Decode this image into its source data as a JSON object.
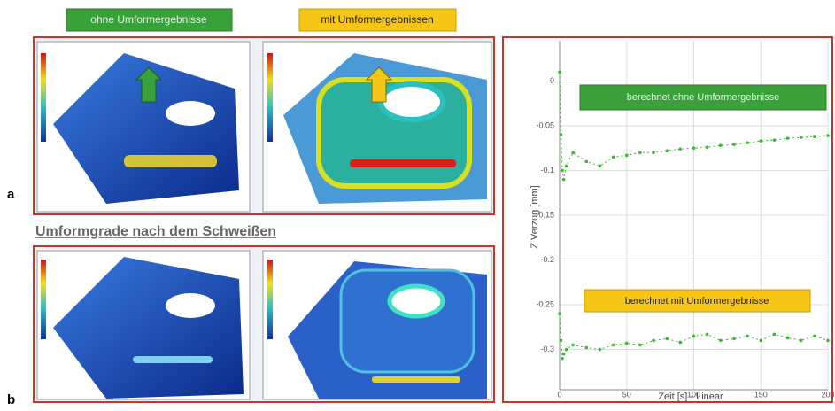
{
  "chart_data": {
    "type": "line",
    "labels": {
      "left": "ohne Umformergebnisse",
      "right": "mit Umformergebnissen",
      "panel_a": "a",
      "panel_b": "b",
      "heading": "Umformgrade nach dem Schweißen"
    },
    "y_label": "Z Verzug [mm]",
    "x_label": "Zeit [s] - Linear",
    "annotations": [
      "berechnet ohne Umformergebnisse",
      "berechnet mit Umformergebnisse"
    ],
    "x": [
      0,
      1,
      2,
      3,
      5,
      10,
      20,
      30,
      40,
      50,
      60,
      70,
      80,
      90,
      100,
      110,
      120,
      130,
      140,
      150,
      160,
      170,
      180,
      190,
      200
    ],
    "series": [
      {
        "color": "#3cb832",
        "values": [
          0.01,
          -0.06,
          -0.1,
          -0.11,
          -0.095,
          -0.08,
          -0.09,
          -0.095,
          -0.085,
          -0.083,
          -0.08,
          -0.08,
          -0.078,
          -0.076,
          -0.075,
          -0.074,
          -0.072,
          -0.071,
          -0.069,
          -0.067,
          -0.066,
          -0.064,
          -0.063,
          -0.062,
          -0.061
        ]
      },
      {
        "color": "#3cb832",
        "values": [
          -0.26,
          -0.29,
          -0.31,
          -0.305,
          -0.3,
          -0.295,
          -0.298,
          -0.3,
          -0.295,
          -0.293,
          -0.295,
          -0.29,
          -0.288,
          -0.292,
          -0.285,
          -0.283,
          -0.29,
          -0.288,
          -0.285,
          -0.29,
          -0.283,
          -0.287,
          -0.29,
          -0.285,
          -0.29
        ]
      }
    ],
    "xlim": [
      0,
      200
    ],
    "xticks": [
      0,
      50,
      100,
      150,
      200
    ],
    "ylim": [
      -0.345,
      0.045
    ],
    "yticks": [
      0,
      -0.05,
      -0.1,
      -0.15,
      -0.2,
      -0.25,
      -0.3
    ],
    "grid": true
  }
}
